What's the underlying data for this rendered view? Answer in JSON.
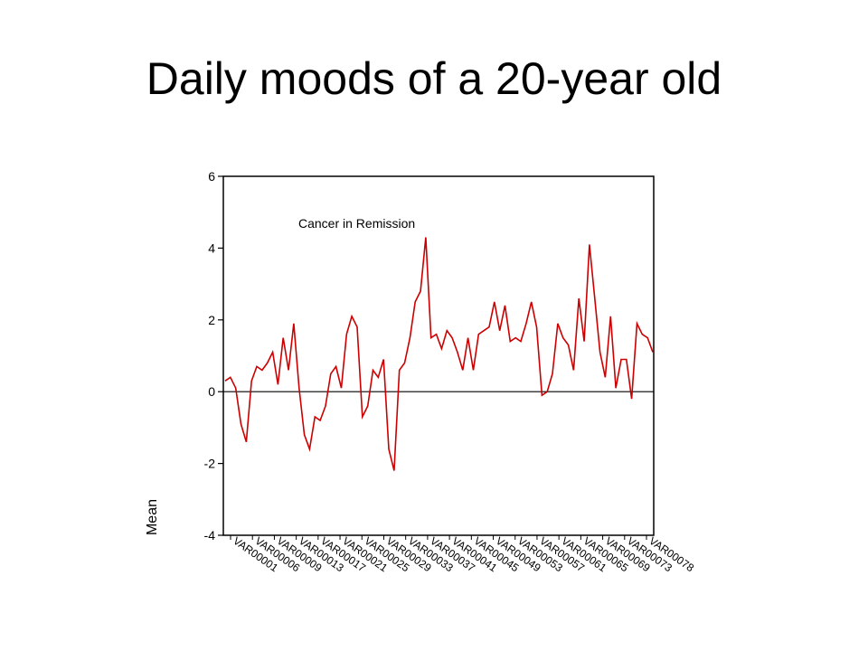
{
  "slide": {
    "title": "Daily moods of a 20-year old"
  },
  "chart_data": {
    "type": "line",
    "title": "",
    "xlabel": "",
    "ylabel": "Mean",
    "annotation": "Cancer in Remission",
    "ylim": [
      -4,
      6
    ],
    "yticks": [
      6,
      4,
      2,
      0,
      -2,
      -4
    ],
    "reference_line_y": 0,
    "line_color": "#cc0000",
    "x_tick_labels": [
      "VAR00001",
      "VAR00006",
      "VAR00009",
      "VAR00013",
      "VAR00017",
      "VAR00021",
      "VAR00025",
      "VAR00029",
      "VAR00033",
      "VAR00037",
      "VAR00041",
      "VAR00045",
      "VAR00049",
      "VAR00053",
      "VAR00057",
      "VAR00061",
      "VAR00065",
      "VAR00069",
      "VAR00073",
      "VAR00078"
    ],
    "series": [
      {
        "values": [
          0.3,
          0.4,
          0.1,
          -0.9,
          -1.4,
          0.3,
          0.7,
          0.6,
          0.8,
          1.1,
          0.2,
          1.5,
          0.6,
          1.9,
          0.1,
          -1.2,
          -1.6,
          -0.7,
          -0.8,
          -0.4,
          0.5,
          0.7,
          0.1,
          1.6,
          2.1,
          1.8,
          -0.7,
          -0.4,
          0.6,
          0.4,
          0.9,
          -1.6,
          -2.2,
          0.6,
          0.8,
          1.5,
          2.5,
          2.8,
          4.3,
          1.5,
          1.6,
          1.2,
          1.7,
          1.5,
          1.1,
          0.6,
          1.5,
          0.6,
          1.6,
          1.7,
          1.8,
          2.5,
          1.7,
          2.4,
          1.4,
          1.5,
          1.4,
          1.9,
          2.5,
          1.8,
          -0.1,
          0.0,
          0.5,
          1.9,
          1.5,
          1.3,
          0.6,
          2.6,
          1.4,
          4.1,
          2.6,
          1.1,
          0.4,
          2.1,
          0.1,
          0.9,
          0.9,
          -0.2,
          1.9,
          1.6,
          1.5,
          1.1
        ]
      }
    ]
  }
}
